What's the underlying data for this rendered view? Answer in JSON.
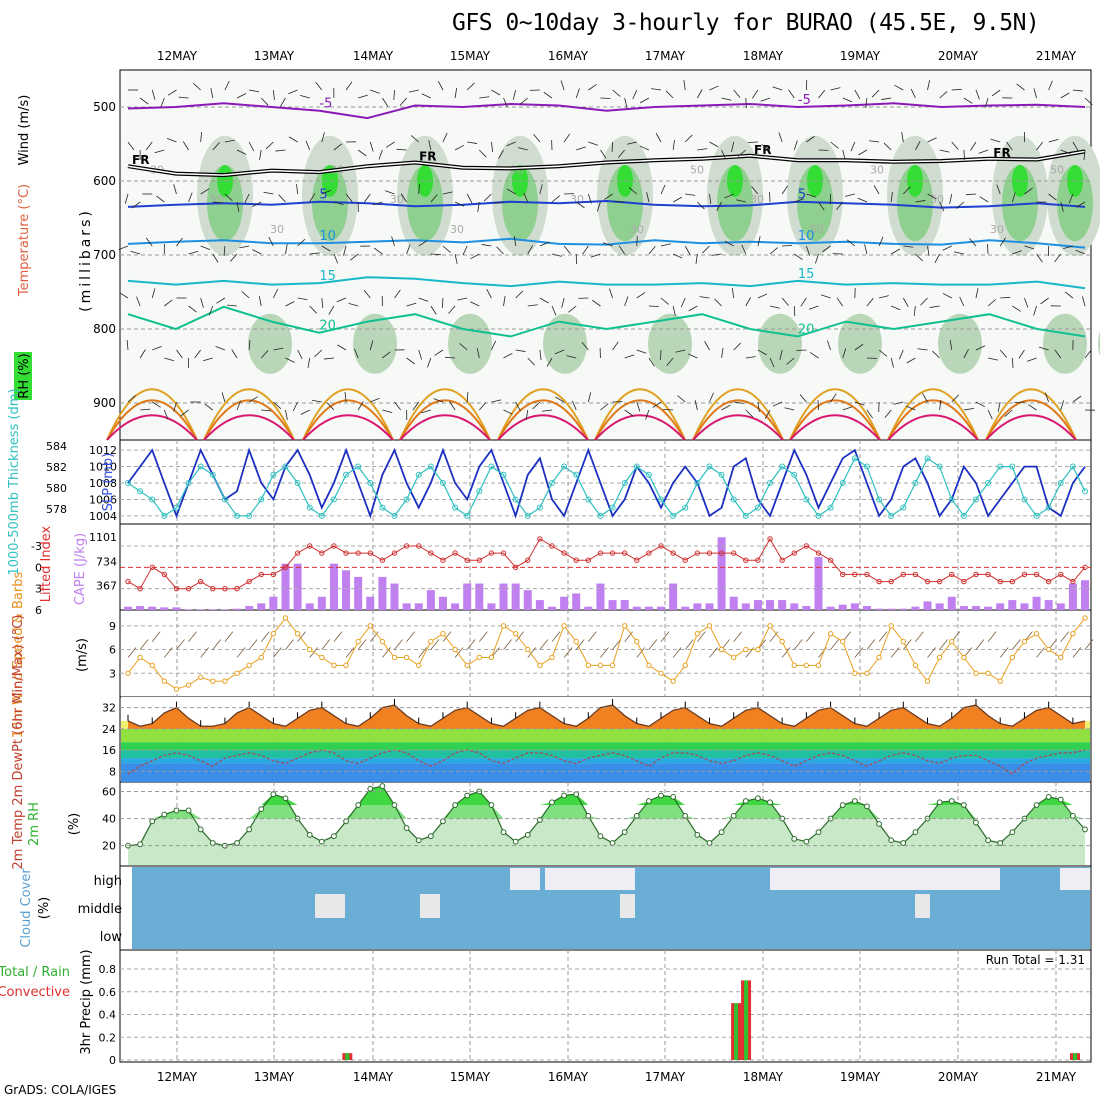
{
  "title": "GFS 0~10day 3-hourly for BURAO (45.5E, 9.5N)",
  "credit": "GrADS: COLA/IGES",
  "run_total_label": "Run Total = 1.31",
  "dates": [
    "12MAY",
    "13MAY",
    "14MAY",
    "15MAY",
    "16MAY",
    "17MAY",
    "18MAY",
    "19MAY",
    "20MAY",
    "21MAY"
  ],
  "chart_data": [
    {
      "id": "upper-air",
      "type": "heatmap",
      "ylabel": "(millibars)",
      "side_labels": [
        "Wind (m/s)",
        "Temperature (°C)",
        "RH (%)"
      ],
      "ylim": [
        950,
        450
      ],
      "yticks": [
        "500",
        "600",
        "700",
        "800",
        "900"
      ],
      "rh_contour_labels": [
        "30",
        "50",
        "30",
        "30",
        "30",
        "30",
        "30",
        "30",
        "30",
        "50",
        "30",
        "50",
        "30",
        "50",
        "30",
        "50"
      ],
      "isotherms": [
        {
          "label": "-5",
          "values": [
            502,
            500,
            495,
            500,
            505,
            515,
            498,
            500,
            496,
            498,
            505,
            500,
            498,
            496,
            500,
            498,
            495,
            500,
            498,
            497,
            500
          ],
          "color": "#8a1ab8"
        },
        {
          "label": "5",
          "values": [
            635,
            632,
            630,
            632,
            628,
            630,
            634,
            632,
            628,
            630,
            627,
            632,
            634,
            633,
            628,
            630,
            632,
            636,
            634,
            630,
            635
          ],
          "color": "#1e3fd0"
        },
        {
          "label": "10",
          "values": [
            685,
            682,
            680,
            684,
            684,
            682,
            680,
            683,
            678,
            685,
            686,
            680,
            684,
            682,
            684,
            682,
            685,
            686,
            680,
            684,
            690
          ],
          "color": "#1e8fe0"
        },
        {
          "label": "15",
          "values": [
            735,
            740,
            735,
            740,
            738,
            730,
            732,
            738,
            742,
            736,
            740,
            740,
            738,
            742,
            735,
            740,
            738,
            740,
            740,
            736,
            745
          ],
          "color": "#18b8c8"
        },
        {
          "label": "20",
          "values": [
            780,
            800,
            770,
            790,
            805,
            790,
            780,
            800,
            810,
            790,
            800,
            790,
            780,
            800,
            810,
            790,
            800,
            790,
            780,
            800,
            810
          ],
          "color": "#10c090"
        }
      ],
      "freezing_level": {
        "label": "FR",
        "values": [
          580,
          590,
          592,
          586,
          588,
          580,
          575,
          582,
          583,
          580,
          575,
          572,
          570,
          566,
          572,
          572,
          574,
          573,
          570,
          571,
          560
        ]
      }
    },
    {
      "id": "thickness-slp",
      "type": "line",
      "left_label": "1000-500mb Thickness (dm)",
      "right_label": "SLP (mb)",
      "left_ticks": [
        "584",
        "582",
        "580",
        "578"
      ],
      "right_ticks": [
        "1012",
        "1010",
        "1008",
        "1006",
        "1004"
      ],
      "series": [
        {
          "name": "Thickness",
          "color": "#1b2fc0",
          "values": [
            1008,
            1010,
            1012,
            1008,
            1004,
            1008,
            1012,
            1009,
            1006,
            1007,
            1012,
            1008,
            1006,
            1010,
            1012,
            1009,
            1005,
            1008,
            1012,
            1008,
            1004,
            1009,
            1012,
            1008,
            1005,
            1008,
            1012,
            1008,
            1006,
            1010,
            1012,
            1008,
            1004,
            1009,
            1011,
            1006,
            1004,
            1008,
            1012,
            1008,
            1004,
            1006,
            1010,
            1008,
            1005,
            1008,
            1010,
            1008,
            1004,
            1005,
            1010,
            1011,
            1006,
            1004,
            1008,
            1012,
            1009,
            1005,
            1008,
            1011,
            1012,
            1008,
            1004,
            1006,
            1010,
            1011,
            1008,
            1004,
            1006,
            1010,
            1008,
            1004,
            1006,
            1008,
            1010,
            1010,
            1005,
            1004,
            1008,
            1010
          ]
        },
        {
          "name": "SLP",
          "color": "#30c0c0",
          "values": [
            1008,
            1007,
            1006,
            1004,
            1005,
            1008,
            1010,
            1009,
            1006,
            1004,
            1004,
            1006,
            1009,
            1010,
            1008,
            1005,
            1004,
            1006,
            1009,
            1010,
            1008,
            1005,
            1004,
            1006,
            1009,
            1010,
            1008,
            1005,
            1004,
            1007,
            1010,
            1009,
            1006,
            1004,
            1005,
            1008,
            1010,
            1009,
            1006,
            1004,
            1005,
            1008,
            1010,
            1009,
            1006,
            1004,
            1005,
            1008,
            1010,
            1009,
            1006,
            1004,
            1005,
            1008,
            1010,
            1009,
            1006,
            1004,
            1005,
            1008,
            1011,
            1010,
            1006,
            1004,
            1005,
            1008,
            1011,
            1010,
            1006,
            1004,
            1006,
            1008,
            1010,
            1010,
            1006,
            1004,
            1005,
            1008,
            1010,
            1007
          ]
        }
      ]
    },
    {
      "id": "lifted-cape",
      "type": "bar",
      "left_label": "Lifted Index",
      "right_label": "CAPE (J/kg)",
      "left_ticks": [
        "-3",
        "0",
        "3",
        "6"
      ],
      "right_ticks": [
        "1101",
        "734",
        "367"
      ],
      "cape": [
        50,
        60,
        50,
        40,
        40,
        10,
        10,
        10,
        10,
        20,
        60,
        100,
        200,
        700,
        700,
        100,
        200,
        700,
        600,
        500,
        200,
        500,
        400,
        100,
        100,
        300,
        200,
        100,
        400,
        400,
        100,
        400,
        400,
        300,
        150,
        50,
        200,
        250,
        50,
        400,
        150,
        150,
        50,
        50,
        50,
        400,
        50,
        100,
        100,
        1100,
        200,
        100,
        150,
        150,
        150,
        100,
        60,
        800,
        50,
        80,
        100,
        60,
        20,
        20,
        20,
        50,
        130,
        100,
        200,
        60,
        60,
        50,
        100,
        150,
        100,
        200,
        150,
        100,
        400,
        450
      ],
      "lifted_index": [
        2,
        3,
        0,
        1,
        3,
        3,
        2,
        3,
        3,
        3,
        2,
        1,
        1,
        0,
        -2,
        -3,
        -2,
        -3,
        -2,
        -2,
        -2,
        -1,
        -2,
        -3,
        -3,
        -2,
        -1,
        -2,
        -1,
        -1,
        -2,
        -2,
        0,
        -1,
        -4,
        -3,
        -2,
        -1,
        -1,
        -2,
        -2,
        -2,
        -1,
        -2,
        -3,
        -2,
        -1,
        -2,
        -2,
        -2,
        -2,
        -1,
        -1,
        -4,
        -1,
        -2,
        -3,
        -2,
        -1,
        1,
        1,
        1,
        2,
        2,
        1,
        1,
        2,
        2,
        1,
        2,
        1,
        1,
        2,
        2,
        1,
        1,
        2,
        1,
        2,
        0
      ]
    },
    {
      "id": "wind10m",
      "type": "line",
      "left_label": "10m Wind Speed & Barbs",
      "unit_label": "(m/s)",
      "ylim": [
        0,
        11
      ],
      "yticks": [
        "3",
        "6",
        "9"
      ],
      "series": [
        {
          "name": "Speed",
          "color": "#e8a020",
          "values": [
            3,
            5,
            4,
            2,
            1,
            1.5,
            2.5,
            2,
            2,
            3,
            4,
            5,
            8,
            10,
            8,
            6,
            5,
            4,
            4,
            7,
            9,
            7,
            5,
            5,
            4,
            7,
            8,
            6,
            4,
            5,
            5,
            9,
            8,
            6,
            4,
            5,
            9,
            7,
            4,
            4,
            4,
            9,
            7,
            4,
            3,
            2,
            4,
            8,
            9,
            6,
            5,
            6,
            6,
            9,
            7,
            4,
            4,
            4,
            8,
            7,
            3,
            3,
            5,
            9,
            7,
            4,
            2,
            5,
            7,
            5,
            3,
            3,
            2,
            5,
            7,
            8,
            6,
            5,
            8,
            10
          ]
        }
      ]
    },
    {
      "id": "temp2m",
      "type": "area",
      "left_label": "2m Temp 2m DewPt (6hr Min/Max) (°C)",
      "ylim": [
        4,
        36
      ],
      "yticks": [
        "8",
        "16",
        "24",
        "32"
      ],
      "series": [
        {
          "name": "Temp",
          "values": [
            27,
            25,
            26,
            30,
            32,
            28,
            25,
            25,
            26,
            30,
            32,
            29,
            26,
            25,
            28,
            31,
            32,
            29,
            26,
            25,
            28,
            32,
            33,
            29,
            26,
            25,
            28,
            31,
            32,
            29,
            26,
            25,
            28,
            31,
            32,
            29,
            26,
            25,
            28,
            32,
            33,
            29,
            26,
            25,
            28,
            31,
            32,
            29,
            26,
            25,
            28,
            31,
            32,
            29,
            26,
            25,
            28,
            31,
            32,
            29,
            26,
            25,
            28,
            31,
            32,
            29,
            26,
            25,
            28,
            32,
            33,
            29,
            26,
            25,
            28,
            31,
            32,
            29,
            26,
            27
          ]
        },
        {
          "name": "DewPt",
          "values": [
            7,
            10,
            12,
            14,
            15,
            14,
            12,
            10,
            13,
            14,
            15,
            14,
            12,
            11,
            13,
            15,
            16,
            15,
            12,
            11,
            13,
            15,
            16,
            15,
            12,
            10,
            12,
            15,
            16,
            15,
            12,
            11,
            13,
            15,
            15,
            14,
            12,
            11,
            13,
            14,
            15,
            14,
            12,
            10,
            13,
            15,
            15,
            14,
            12,
            11,
            12,
            14,
            15,
            14,
            12,
            10,
            12,
            14,
            15,
            14,
            12,
            10,
            12,
            14,
            15,
            14,
            12,
            11,
            13,
            14,
            14,
            12,
            10,
            7,
            11,
            13,
            14,
            15,
            15,
            16
          ]
        }
      ]
    },
    {
      "id": "rh2m",
      "type": "area",
      "left_label": "2m RH",
      "unit_label": "(%)",
      "ylim": [
        5,
        67
      ],
      "yticks": [
        "20",
        "40",
        "60"
      ],
      "series": [
        {
          "name": "RH",
          "values": [
            20,
            21,
            38,
            43,
            46,
            46,
            32,
            22,
            20,
            22,
            32,
            47,
            58,
            55,
            40,
            28,
            23,
            27,
            38,
            50,
            62,
            64,
            50,
            33,
            24,
            27,
            38,
            50,
            57,
            60,
            50,
            30,
            23,
            28,
            39,
            52,
            57,
            58,
            42,
            27,
            22,
            30,
            42,
            53,
            57,
            56,
            42,
            28,
            22,
            30,
            42,
            53,
            55,
            52,
            40,
            25,
            23,
            30,
            40,
            50,
            53,
            49,
            36,
            24,
            22,
            30,
            40,
            52,
            53,
            50,
            37,
            24,
            22,
            30,
            40,
            50,
            56,
            54,
            42,
            32
          ]
        }
      ]
    },
    {
      "id": "cloud-cover",
      "type": "heatmap",
      "left_label": "Cloud Cover",
      "unit_label": "(%)",
      "row_labels": [
        "high",
        "middle",
        "low"
      ]
    },
    {
      "id": "precip",
      "type": "bar",
      "left_label": "Total / Rain Convective",
      "ylabel": "3hr Precip (mm)",
      "ylim": [
        0,
        0.95
      ],
      "yticks": [
        "0",
        "0.2",
        "0.4",
        "0.6",
        "0.8"
      ],
      "bars": [
        {
          "slot": 22,
          "total": 0.06,
          "rain": 0.06
        },
        {
          "slot": 61,
          "total": 0.5,
          "rain": 0.5
        },
        {
          "slot": 62,
          "total": 0.7,
          "rain": 0.7
        },
        {
          "slot": 95,
          "total": 0.06,
          "rain": 0.06
        }
      ]
    }
  ]
}
